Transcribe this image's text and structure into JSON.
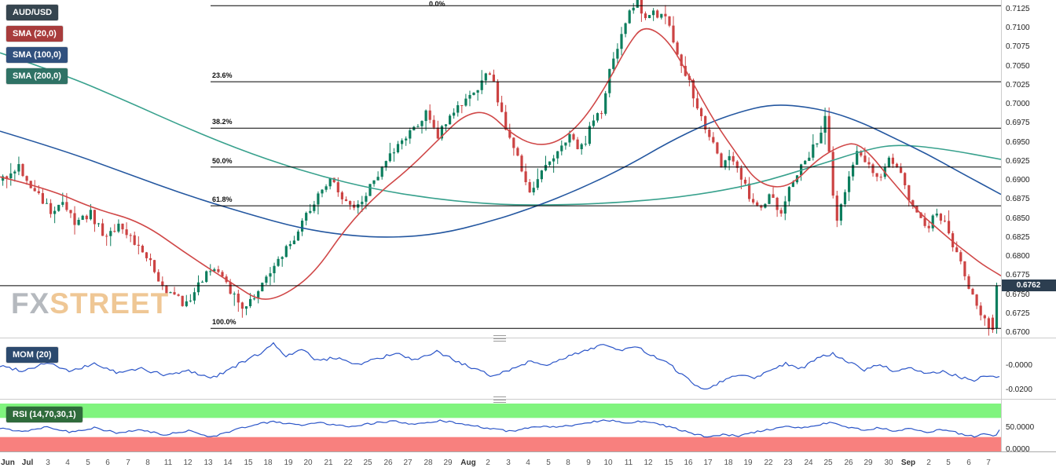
{
  "legend": {
    "items": [
      {
        "label": "AUD/USD",
        "color": "#36454f"
      },
      {
        "label": "SMA (20,0)",
        "color": "#a83c3c"
      },
      {
        "label": "SMA (100,0)",
        "color": "#31517e"
      },
      {
        "label": "SMA (200,0)",
        "color": "#2f7265"
      }
    ]
  },
  "watermark": {
    "fx": "FX",
    "street": "STREET"
  },
  "price_badge": "0.6762",
  "indicators": {
    "mom": {
      "label": "MOM (20)",
      "chip_color": "#2c4a6e",
      "axis_labels": [
        "-0.0000",
        "-0.0200"
      ],
      "axis_values": [
        0,
        -0.02
      ]
    },
    "rsi": {
      "label": "RSI (14,70,30,1)",
      "chip_color": "#2f6b3b",
      "axis_labels": [
        "50.0000",
        "0.0000"
      ],
      "axis_values": [
        50,
        0
      ]
    }
  },
  "colors": {
    "candle_up": "#0d7e5e",
    "candle_down": "#cc4343",
    "sma20": "#d04848",
    "sma100": "#2457a0",
    "sma200": "#38a18d",
    "indicator_line": "#2b55c8",
    "rsi_band_green": "#80f47e",
    "rsi_band_red": "#f8807e",
    "fib_line": "#000000",
    "badge_bg": "#2c3e50"
  },
  "chart_data": {
    "type": "candlestick",
    "pair": "AUD/USD",
    "x_labels": [
      "Jun",
      "Jul",
      "3",
      "4",
      "5",
      "6",
      "7",
      "8",
      "11",
      "12",
      "13",
      "14",
      "15",
      "18",
      "19",
      "20",
      "21",
      "22",
      "25",
      "26",
      "27",
      "28",
      "29",
      "Aug",
      "2",
      "3",
      "4",
      "5",
      "8",
      "9",
      "10",
      "11",
      "12",
      "15",
      "16",
      "17",
      "18",
      "19",
      "22",
      "23",
      "24",
      "25",
      "26",
      "29",
      "30",
      "Sep",
      "2",
      "5",
      "6",
      "7"
    ],
    "y_axis_ticks": [
      "0.7125",
      "0.7100",
      "0.7075",
      "0.7050",
      "0.7025",
      "0.7000",
      "0.6975",
      "0.6950",
      "0.6925",
      "0.6900",
      "0.6875",
      "0.6850",
      "0.6825",
      "0.6800",
      "0.6775",
      "0.6750",
      "0.6725",
      "0.6700"
    ],
    "y_axis_range": [
      0.67,
      0.7125
    ],
    "fib_levels": [
      {
        "label": "0.0%",
        "price": 0.713
      },
      {
        "label": "23.6%",
        "price": 0.703
      },
      {
        "label": "38.2%",
        "price": 0.6969
      },
      {
        "label": "50.0%",
        "price": 0.6918
      },
      {
        "label": "61.8%",
        "price": 0.6867
      },
      {
        "label": "100.0%",
        "price": 0.6706
      }
    ],
    "last_price": 0.6762,
    "candle_count": 250,
    "close_path_anchors": [
      [
        0,
        0.69
      ],
      [
        4,
        0.692
      ],
      [
        8,
        0.6885
      ],
      [
        12,
        0.686
      ],
      [
        15,
        0.6876
      ],
      [
        18,
        0.684
      ],
      [
        22,
        0.6856
      ],
      [
        26,
        0.6826
      ],
      [
        30,
        0.6842
      ],
      [
        34,
        0.6812
      ],
      [
        37,
        0.679
      ],
      [
        40,
        0.6764
      ],
      [
        43,
        0.6746
      ],
      [
        46,
        0.6738
      ],
      [
        49,
        0.6762
      ],
      [
        52,
        0.6786
      ],
      [
        55,
        0.677
      ],
      [
        58,
        0.6746
      ],
      [
        61,
        0.6733
      ],
      [
        64,
        0.676
      ],
      [
        67,
        0.678
      ],
      [
        70,
        0.6802
      ],
      [
        73,
        0.6826
      ],
      [
        76,
        0.6856
      ],
      [
        79,
        0.6882
      ],
      [
        82,
        0.6902
      ],
      [
        85,
        0.6878
      ],
      [
        88,
        0.686
      ],
      [
        91,
        0.6882
      ],
      [
        94,
        0.6906
      ],
      [
        97,
        0.693
      ],
      [
        100,
        0.695
      ],
      [
        103,
        0.6972
      ],
      [
        106,
        0.6988
      ],
      [
        109,
        0.696
      ],
      [
        112,
        0.698
      ],
      [
        115,
        0.7002
      ],
      [
        117,
        0.7008
      ],
      [
        120,
        0.703
      ],
      [
        122,
        0.7042
      ],
      [
        125,
        0.6992
      ],
      [
        127,
        0.6952
      ],
      [
        130,
        0.6916
      ],
      [
        132,
        0.6888
      ],
      [
        135,
        0.6912
      ],
      [
        137,
        0.6928
      ],
      [
        140,
        0.6945
      ],
      [
        142,
        0.6958
      ],
      [
        145,
        0.6942
      ],
      [
        147,
        0.6966
      ],
      [
        150,
        0.6992
      ],
      [
        152,
        0.7045
      ],
      [
        155,
        0.7095
      ],
      [
        157,
        0.7128
      ],
      [
        159,
        0.7134
      ],
      [
        161,
        0.7108
      ],
      [
        163,
        0.7124
      ],
      [
        166,
        0.7112
      ],
      [
        168,
        0.7086
      ],
      [
        171,
        0.704
      ],
      [
        174,
        0.7
      ],
      [
        177,
        0.6958
      ],
      [
        180,
        0.692
      ],
      [
        182,
        0.6936
      ],
      [
        185,
        0.6906
      ],
      [
        187,
        0.688
      ],
      [
        190,
        0.6862
      ],
      [
        192,
        0.6878
      ],
      [
        195,
        0.686
      ],
      [
        197,
        0.6896
      ],
      [
        200,
        0.6916
      ],
      [
        202,
        0.6932
      ],
      [
        205,
        0.6962
      ],
      [
        206,
        0.699
      ],
      [
        207,
        0.694
      ],
      [
        208,
        0.688
      ],
      [
        209,
        0.685
      ],
      [
        211,
        0.6886
      ],
      [
        212,
        0.691
      ],
      [
        214,
        0.6936
      ],
      [
        217,
        0.692
      ],
      [
        220,
        0.69
      ],
      [
        222,
        0.6925
      ],
      [
        225,
        0.6906
      ],
      [
        227,
        0.688
      ],
      [
        229,
        0.6858
      ],
      [
        232,
        0.6836
      ],
      [
        234,
        0.6862
      ],
      [
        236,
        0.6842
      ],
      [
        238,
        0.6818
      ],
      [
        240,
        0.6798
      ],
      [
        242,
        0.6762
      ],
      [
        244,
        0.6738
      ],
      [
        246,
        0.6716
      ],
      [
        248,
        0.6704
      ],
      [
        249,
        0.6762
      ]
    ],
    "sma20_anchors": [
      [
        0,
        0.6905
      ],
      [
        60,
        0.689
      ],
      [
        120,
        0.6863
      ],
      [
        180,
        0.6846
      ],
      [
        240,
        0.6802
      ],
      [
        300,
        0.6762
      ],
      [
        330,
        0.6742
      ],
      [
        360,
        0.6748
      ],
      [
        400,
        0.6778
      ],
      [
        440,
        0.6838
      ],
      [
        480,
        0.6882
      ],
      [
        520,
        0.6915
      ],
      [
        560,
        0.6956
      ],
      [
        590,
        0.6986
      ],
      [
        620,
        0.6992
      ],
      [
        650,
        0.6962
      ],
      [
        680,
        0.6946
      ],
      [
        710,
        0.695
      ],
      [
        740,
        0.6976
      ],
      [
        770,
        0.7022
      ],
      [
        800,
        0.708
      ],
      [
        820,
        0.7105
      ],
      [
        850,
        0.7086
      ],
      [
        880,
        0.7032
      ],
      [
        910,
        0.6976
      ],
      [
        940,
        0.6932
      ],
      [
        960,
        0.6902
      ],
      [
        985,
        0.689
      ],
      [
        1010,
        0.6896
      ],
      [
        1040,
        0.6928
      ],
      [
        1070,
        0.6946
      ],
      [
        1090,
        0.695
      ],
      [
        1110,
        0.6932
      ],
      [
        1130,
        0.6906
      ],
      [
        1150,
        0.6882
      ],
      [
        1170,
        0.6858
      ],
      [
        1190,
        0.684
      ],
      [
        1210,
        0.6822
      ],
      [
        1230,
        0.6806
      ],
      [
        1250,
        0.679
      ],
      [
        1274,
        0.6775
      ]
    ],
    "sma100_anchors": [
      [
        0,
        0.6965
      ],
      [
        80,
        0.694
      ],
      [
        160,
        0.691
      ],
      [
        240,
        0.688
      ],
      [
        320,
        0.6855
      ],
      [
        380,
        0.6838
      ],
      [
        440,
        0.6828
      ],
      [
        500,
        0.6825
      ],
      [
        560,
        0.683
      ],
      [
        620,
        0.6845
      ],
      [
        680,
        0.6865
      ],
      [
        740,
        0.689
      ],
      [
        800,
        0.692
      ],
      [
        850,
        0.695
      ],
      [
        900,
        0.6975
      ],
      [
        940,
        0.699
      ],
      [
        980,
        0.7
      ],
      [
        1020,
        0.6998
      ],
      [
        1060,
        0.699
      ],
      [
        1100,
        0.6975
      ],
      [
        1140,
        0.6955
      ],
      [
        1180,
        0.6935
      ],
      [
        1220,
        0.6912
      ],
      [
        1274,
        0.6882
      ]
    ],
    "sma200_anchors": [
      [
        0,
        0.7068
      ],
      [
        80,
        0.704
      ],
      [
        160,
        0.7005
      ],
      [
        240,
        0.6968
      ],
      [
        320,
        0.6935
      ],
      [
        400,
        0.6908
      ],
      [
        480,
        0.6888
      ],
      [
        560,
        0.6875
      ],
      [
        640,
        0.6868
      ],
      [
        720,
        0.6868
      ],
      [
        800,
        0.6872
      ],
      [
        880,
        0.688
      ],
      [
        960,
        0.6895
      ],
      [
        1040,
        0.692
      ],
      [
        1100,
        0.694
      ],
      [
        1140,
        0.6948
      ],
      [
        1200,
        0.6942
      ],
      [
        1274,
        0.6928
      ]
    ],
    "mom_range": [
      -0.02,
      0.018
    ],
    "mom_anchors": [
      [
        0,
        0.0
      ],
      [
        30,
        -0.004
      ],
      [
        60,
        0.003
      ],
      [
        90,
        -0.005
      ],
      [
        120,
        0.002
      ],
      [
        150,
        -0.006
      ],
      [
        180,
        -0.002
      ],
      [
        210,
        -0.008
      ],
      [
        240,
        -0.004
      ],
      [
        270,
        -0.01
      ],
      [
        300,
        0.0
      ],
      [
        330,
        0.01
      ],
      [
        348,
        0.018
      ],
      [
        365,
        0.008
      ],
      [
        385,
        0.013
      ],
      [
        405,
        0.004
      ],
      [
        430,
        0.007
      ],
      [
        455,
        0.001
      ],
      [
        480,
        0.006
      ],
      [
        505,
        0.01
      ],
      [
        530,
        0.004
      ],
      [
        555,
        0.012
      ],
      [
        575,
        0.006
      ],
      [
        600,
        -0.002
      ],
      [
        625,
        -0.008
      ],
      [
        650,
        -0.003
      ],
      [
        675,
        0.004
      ],
      [
        700,
        0.001
      ],
      [
        725,
        0.008
      ],
      [
        750,
        0.014
      ],
      [
        770,
        0.018
      ],
      [
        790,
        0.012
      ],
      [
        810,
        0.016
      ],
      [
        830,
        0.008
      ],
      [
        850,
        0.002
      ],
      [
        870,
        -0.008
      ],
      [
        885,
        -0.016
      ],
      [
        900,
        -0.019
      ],
      [
        920,
        -0.012
      ],
      [
        940,
        -0.007
      ],
      [
        960,
        -0.01
      ],
      [
        980,
        -0.003
      ],
      [
        1000,
        0.002
      ],
      [
        1020,
        -0.002
      ],
      [
        1040,
        0.006
      ],
      [
        1060,
        0.01
      ],
      [
        1080,
        0.003
      ],
      [
        1100,
        -0.003
      ],
      [
        1120,
        0.001
      ],
      [
        1140,
        -0.005
      ],
      [
        1160,
        -0.002
      ],
      [
        1180,
        -0.007
      ],
      [
        1200,
        -0.004
      ],
      [
        1220,
        -0.009
      ],
      [
        1240,
        -0.012
      ],
      [
        1255,
        -0.008
      ],
      [
        1274,
        -0.01
      ]
    ],
    "rsi_bands": {
      "overbought": 70,
      "oversold": 30
    },
    "rsi_anchors": [
      [
        0,
        48
      ],
      [
        30,
        42
      ],
      [
        60,
        52
      ],
      [
        90,
        40
      ],
      [
        120,
        50
      ],
      [
        150,
        38
      ],
      [
        180,
        45
      ],
      [
        210,
        34
      ],
      [
        240,
        44
      ],
      [
        270,
        30
      ],
      [
        300,
        46
      ],
      [
        330,
        58
      ],
      [
        350,
        62
      ],
      [
        380,
        55
      ],
      [
        410,
        60
      ],
      [
        440,
        52
      ],
      [
        470,
        58
      ],
      [
        500,
        63
      ],
      [
        530,
        56
      ],
      [
        560,
        64
      ],
      [
        590,
        58
      ],
      [
        620,
        48
      ],
      [
        650,
        42
      ],
      [
        680,
        52
      ],
      [
        710,
        50
      ],
      [
        740,
        58
      ],
      [
        770,
        66
      ],
      [
        800,
        60
      ],
      [
        820,
        64
      ],
      [
        850,
        52
      ],
      [
        880,
        38
      ],
      [
        900,
        30
      ],
      [
        920,
        36
      ],
      [
        940,
        32
      ],
      [
        960,
        40
      ],
      [
        980,
        46
      ],
      [
        1000,
        52
      ],
      [
        1020,
        48
      ],
      [
        1040,
        56
      ],
      [
        1060,
        60
      ],
      [
        1080,
        50
      ],
      [
        1100,
        44
      ],
      [
        1120,
        50
      ],
      [
        1140,
        42
      ],
      [
        1160,
        48
      ],
      [
        1180,
        40
      ],
      [
        1200,
        46
      ],
      [
        1220,
        38
      ],
      [
        1240,
        32
      ],
      [
        1255,
        36
      ],
      [
        1265,
        30
      ],
      [
        1274,
        48
      ]
    ]
  }
}
